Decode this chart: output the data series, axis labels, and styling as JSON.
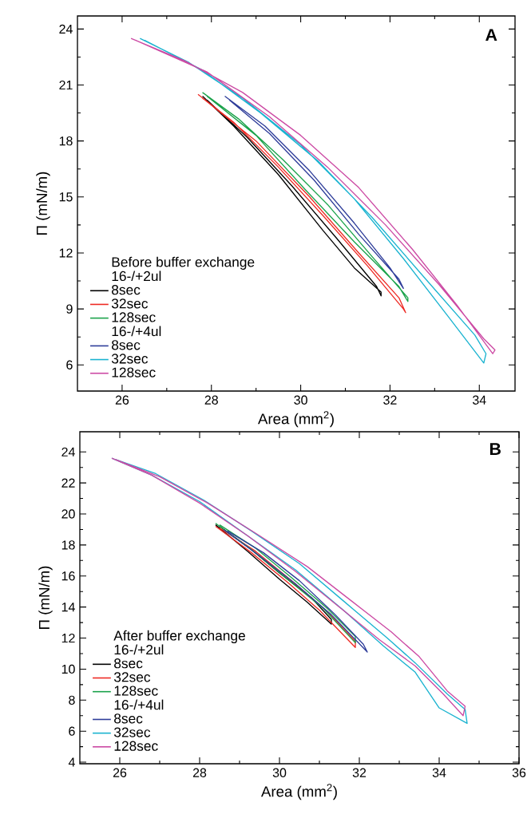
{
  "chart_data": [
    {
      "type": "line",
      "title": "A",
      "xlabel": "Area (mm$^{2}$)",
      "ylabel": "Π (mN/m)",
      "legend_title": "Before buffer exchange",
      "annotations": [
        "16-/+2ul",
        "16-/+4ul"
      ],
      "legend": "bottom left",
      "xlim": [
        25,
        34.8
      ],
      "ylim": [
        4.6,
        24.7
      ],
      "xticks": [
        26,
        28,
        30,
        32,
        34
      ],
      "yticks": [
        6,
        9,
        12,
        15,
        18,
        21,
        24
      ],
      "series": [
        {
          "name": "8sec",
          "color": "#000000",
          "x": [
            27.8,
            28.5,
            29.5,
            30.5,
            31.2,
            31.8,
            31.8,
            31.7,
            30.8,
            29.8,
            28.8,
            27.9
          ],
          "values": [
            20.4,
            18.8,
            16.2,
            13.2,
            11.2,
            9.9,
            9.7,
            10.2,
            12.8,
            15.6,
            18.2,
            20.2
          ]
        },
        {
          "name": "32sec",
          "color": "#ee2a24",
          "x": [
            27.7,
            28.5,
            29.5,
            30.5,
            31.5,
            32.3,
            32.35,
            32.2,
            31.3,
            30.2,
            29.0,
            27.8
          ],
          "values": [
            20.5,
            19.0,
            16.6,
            14.0,
            11.3,
            9.0,
            8.8,
            9.6,
            12.0,
            15.0,
            18.0,
            20.3
          ]
        },
        {
          "name": "128sec",
          "color": "#1aa24a",
          "x": [
            27.8,
            28.6,
            29.6,
            30.6,
            31.6,
            32.4,
            32.4,
            32.2,
            31.2,
            30.1,
            29.0,
            27.9
          ],
          "values": [
            20.6,
            19.2,
            17.0,
            14.6,
            11.8,
            9.6,
            9.4,
            10.2,
            12.6,
            15.4,
            18.3,
            20.4
          ]
        },
        {
          "name": "8sec",
          "color": "#2e3d9a",
          "x": [
            28.3,
            29.2,
            30.2,
            31.2,
            32.0,
            32.3,
            32.2,
            31.3,
            30.3,
            29.3,
            28.4
          ],
          "values": [
            20.4,
            18.8,
            16.4,
            13.6,
            11.2,
            10.1,
            10.6,
            13.0,
            15.9,
            18.4,
            20.2
          ]
        },
        {
          "name": "32sec",
          "color": "#1ab3d0",
          "x": [
            26.4,
            27.5,
            28.7,
            30.0,
            31.2,
            32.3,
            33.3,
            34.1,
            34.15,
            33.9,
            32.8,
            31.6,
            30.4,
            29.1,
            27.8,
            26.5
          ],
          "values": [
            23.5,
            22.2,
            20.3,
            17.8,
            14.9,
            11.7,
            8.6,
            6.1,
            6.6,
            7.6,
            10.6,
            13.9,
            16.9,
            19.5,
            21.8,
            23.4
          ]
        },
        {
          "name": "128sec",
          "color": "#cc4aa4",
          "x": [
            26.2,
            27.4,
            28.7,
            30.0,
            31.3,
            32.5,
            33.5,
            34.3,
            34.35,
            34.1,
            33.1,
            31.9,
            30.6,
            29.3,
            27.9,
            26.3
          ],
          "values": [
            23.5,
            22.3,
            20.6,
            18.3,
            15.5,
            12.2,
            9.2,
            6.6,
            6.8,
            7.4,
            10.3,
            13.5,
            16.6,
            19.3,
            21.7,
            23.4
          ]
        }
      ]
    },
    {
      "type": "line",
      "title": "B",
      "xlabel": "Area (mm$^{2}$)",
      "ylabel": "Π (mN/m)",
      "legend_title": "After buffer exchange",
      "annotations": [
        "16-/+2ul",
        "16-/+4ul"
      ],
      "legend": "bottom left",
      "xlim": [
        25,
        36
      ],
      "ylim": [
        3.9,
        25.3
      ],
      "xticks": [
        26,
        28,
        30,
        32,
        34,
        36
      ],
      "yticks": [
        4,
        6,
        8,
        10,
        12,
        14,
        16,
        18,
        20,
        22,
        24
      ],
      "series": [
        {
          "name": "8sec",
          "color": "#000000",
          "x": [
            28.4,
            29.2,
            30.0,
            30.7,
            31.3,
            31.3,
            30.8,
            30.0,
            29.2,
            28.5
          ],
          "values": [
            19.3,
            17.6,
            15.8,
            14.3,
            12.9,
            13.2,
            14.6,
            16.2,
            17.9,
            19.2
          ]
        },
        {
          "name": "32sec",
          "color": "#ee2a24",
          "x": [
            28.4,
            29.3,
            30.2,
            31.0,
            31.9,
            31.9,
            31.2,
            30.3,
            29.4,
            28.5
          ],
          "values": [
            19.2,
            17.5,
            15.6,
            13.8,
            11.4,
            11.8,
            13.7,
            15.7,
            17.6,
            19.1
          ]
        },
        {
          "name": "128sec",
          "color": "#1aa24a",
          "x": [
            28.4,
            29.3,
            30.2,
            31.1,
            31.9,
            31.9,
            31.2,
            30.3,
            29.4,
            28.5
          ],
          "values": [
            19.4,
            17.7,
            15.8,
            13.9,
            11.7,
            12.1,
            13.9,
            15.9,
            17.8,
            19.3
          ]
        },
        {
          "name": "8sec",
          "color": "#2e3d9a",
          "x": [
            28.6,
            29.5,
            30.4,
            31.3,
            32.2,
            32.1,
            31.4,
            30.5,
            29.6,
            28.7
          ],
          "values": [
            19.0,
            17.3,
            15.5,
            13.5,
            11.1,
            11.6,
            13.5,
            15.7,
            17.5,
            18.9
          ]
        },
        {
          "name": "32sec",
          "color": "#1ab3d0",
          "x": [
            25.8,
            26.8,
            28.0,
            29.2,
            30.4,
            31.6,
            32.6,
            33.4,
            34.0,
            34.7,
            34.65,
            34.2,
            33.4,
            32.7,
            31.6,
            30.5,
            29.3,
            28.1,
            26.9,
            25.9
          ],
          "values": [
            23.6,
            22.5,
            20.8,
            18.6,
            16.4,
            13.8,
            11.5,
            9.8,
            7.5,
            6.5,
            7.4,
            8.4,
            10.4,
            12.0,
            14.4,
            16.8,
            18.9,
            20.9,
            22.6,
            23.5
          ]
        },
        {
          "name": "128sec",
          "color": "#cc4aa4",
          "x": [
            25.8,
            26.8,
            28.0,
            29.2,
            30.4,
            31.5,
            32.5,
            33.4,
            34.1,
            34.6,
            34.65,
            34.2,
            33.5,
            32.8,
            31.8,
            30.7,
            29.5,
            28.2,
            27.0,
            25.9
          ],
          "values": [
            23.6,
            22.5,
            20.7,
            18.6,
            16.3,
            14.0,
            11.9,
            10.2,
            8.4,
            7.0,
            7.6,
            8.6,
            10.8,
            12.4,
            14.4,
            16.6,
            18.6,
            20.7,
            22.4,
            23.5
          ]
        }
      ]
    }
  ]
}
